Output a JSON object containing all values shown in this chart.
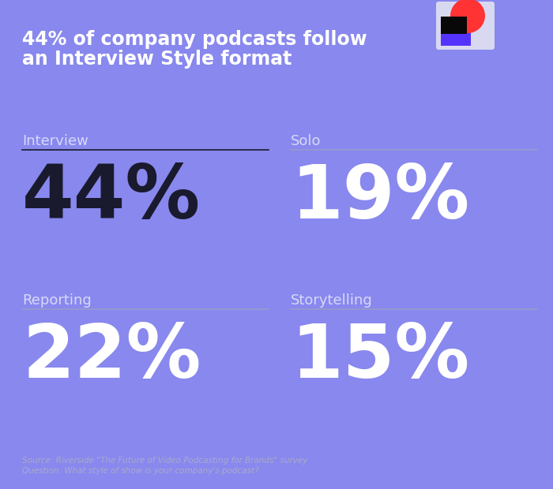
{
  "background_color": "#8888ee",
  "title_line1": "44% of company podcasts follow",
  "title_line2": "an Interview Style format",
  "title_color": "#ffffff",
  "title_fontsize": 17,
  "categories": [
    {
      "label": "Interview",
      "value": "44%",
      "col": 0,
      "row": 0,
      "value_color": "#1a1a2e"
    },
    {
      "label": "Solo",
      "value": "19%",
      "col": 1,
      "row": 0,
      "value_color": "#ffffff"
    },
    {
      "label": "Reporting",
      "value": "22%",
      "col": 0,
      "row": 1,
      "value_color": "#ffffff"
    },
    {
      "label": "Storytelling",
      "value": "15%",
      "col": 1,
      "row": 1,
      "value_color": "#ffffff"
    }
  ],
  "label_color": "#d8d8f8",
  "label_fontsize": 13,
  "value_fontsize": 68,
  "line_color_dark": "#1a1a2e",
  "line_color_light": "#9999cc",
  "source_text": "Source: Riverside \"The Future of Video Podcasting for Brands\" survey\nQuestion: What style of show is your company's podcast?",
  "source_color": "#aaaacc",
  "source_fontsize": 7.5,
  "logo_bg_color": "#d8d8f0",
  "logo_square_color": "#5533ff",
  "logo_circle_color": "#ff3333",
  "logo_black": "#080808"
}
